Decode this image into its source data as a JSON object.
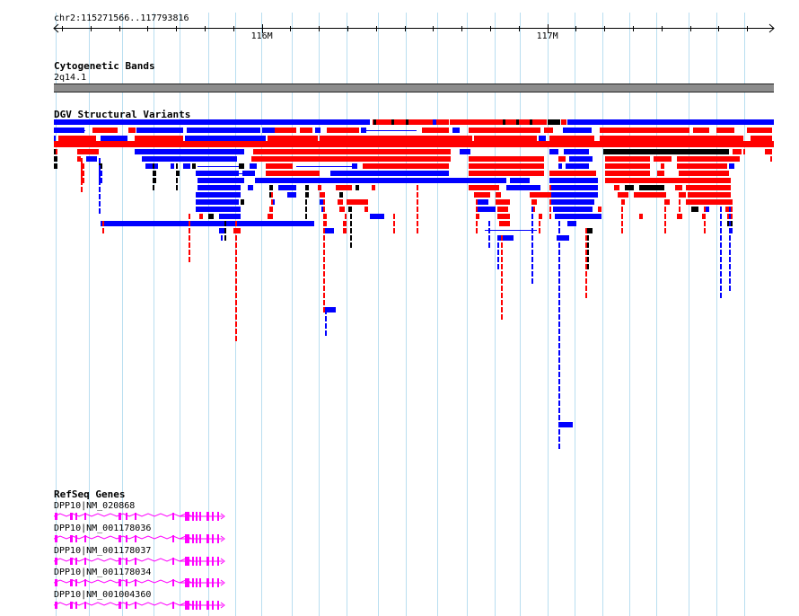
{
  "location": {
    "label": "chr2:115271566..117793816",
    "start": 115271566,
    "end": 117793816
  },
  "ruler": {
    "ticks": [
      {
        "label": "116M",
        "pos": 116000000
      },
      {
        "label": "117M",
        "pos": 117000000
      }
    ]
  },
  "cytoband_track": {
    "title": "Cytogenetic Bands",
    "band": "2q14.1",
    "color": "#8c8c8c"
  },
  "dgv_track": {
    "title": "DGV Structural Variants",
    "colors": {
      "loss": "#ff0000",
      "gain": "#0000ff",
      "both": "#000000"
    }
  },
  "refseq_track": {
    "title": "RefSeq Genes",
    "color": "#ff00ff",
    "genes": [
      {
        "label": "DPP10|NM_020868"
      },
      {
        "label": "DPP10|NM_001178036"
      },
      {
        "label": "DPP10|NM_001178037"
      },
      {
        "label": "DPP10|NM_001178034"
      },
      {
        "label": "DPP10|NM_001004360"
      }
    ]
  }
}
